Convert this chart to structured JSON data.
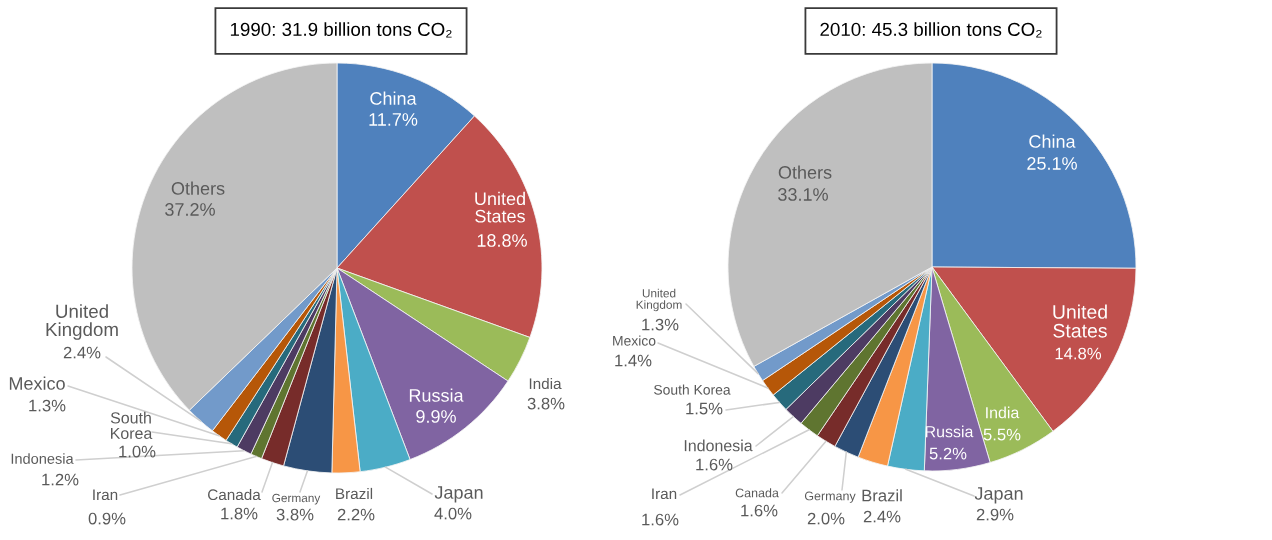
{
  "chart_data": [
    {
      "type": "pie",
      "title": "1990: 31.9 billion tons CO₂",
      "categories": [
        "China",
        "United States",
        "India",
        "Russia",
        "Japan",
        "Brazil",
        "Germany",
        "Canada",
        "Iran",
        "Indonesia",
        "South Korea",
        "Mexico",
        "United Kingdom",
        "Others"
      ],
      "values": [
        11.7,
        18.8,
        3.8,
        9.9,
        4.0,
        2.2,
        3.8,
        1.8,
        0.9,
        1.2,
        1.0,
        1.3,
        2.4,
        37.2
      ],
      "value_labels": [
        "11.7%",
        "18.8%",
        "3.8%",
        "9.9%",
        "4.0%",
        "2.2%",
        "3.8%",
        "1.8%",
        "0.9%",
        "1.2%",
        "1.0%",
        "1.3%",
        "2.4%",
        "37.2%"
      ],
      "colors": [
        "#4f81bd",
        "#c0504d",
        "#9bbb59",
        "#8064a2",
        "#4bacc6",
        "#f79646",
        "#2c4d75",
        "#772c2a",
        "#5f7530",
        "#4d3b62",
        "#276a7c",
        "#b65708",
        "#729aca",
        "#bfbfbf"
      ]
    },
    {
      "type": "pie",
      "title": "2010: 45.3 billion tons CO₂",
      "categories": [
        "China",
        "United States",
        "India",
        "Russia",
        "Japan",
        "Brazil",
        "Germany",
        "Canada",
        "Iran",
        "Indonesia",
        "South Korea",
        "Mexico",
        "United Kingdom",
        "Others"
      ],
      "values": [
        25.1,
        14.8,
        5.5,
        5.2,
        2.9,
        2.4,
        2.0,
        1.6,
        1.6,
        1.6,
        1.5,
        1.4,
        1.3,
        33.1
      ],
      "value_labels": [
        "25.1%",
        "14.8%",
        "5.5%",
        "5.2%",
        "2.9%",
        "2.4%",
        "2.0%",
        "1.6%",
        "1.6%",
        "1.6%",
        "1.5%",
        "1.4%",
        "1.3%",
        "33.1%"
      ],
      "colors": [
        "#4f81bd",
        "#c0504d",
        "#9bbb59",
        "#8064a2",
        "#4bacc6",
        "#f79646",
        "#2c4d75",
        "#772c2a",
        "#5f7530",
        "#4d3b62",
        "#276a7c",
        "#b65708",
        "#729aca",
        "#bfbfbf"
      ]
    }
  ]
}
